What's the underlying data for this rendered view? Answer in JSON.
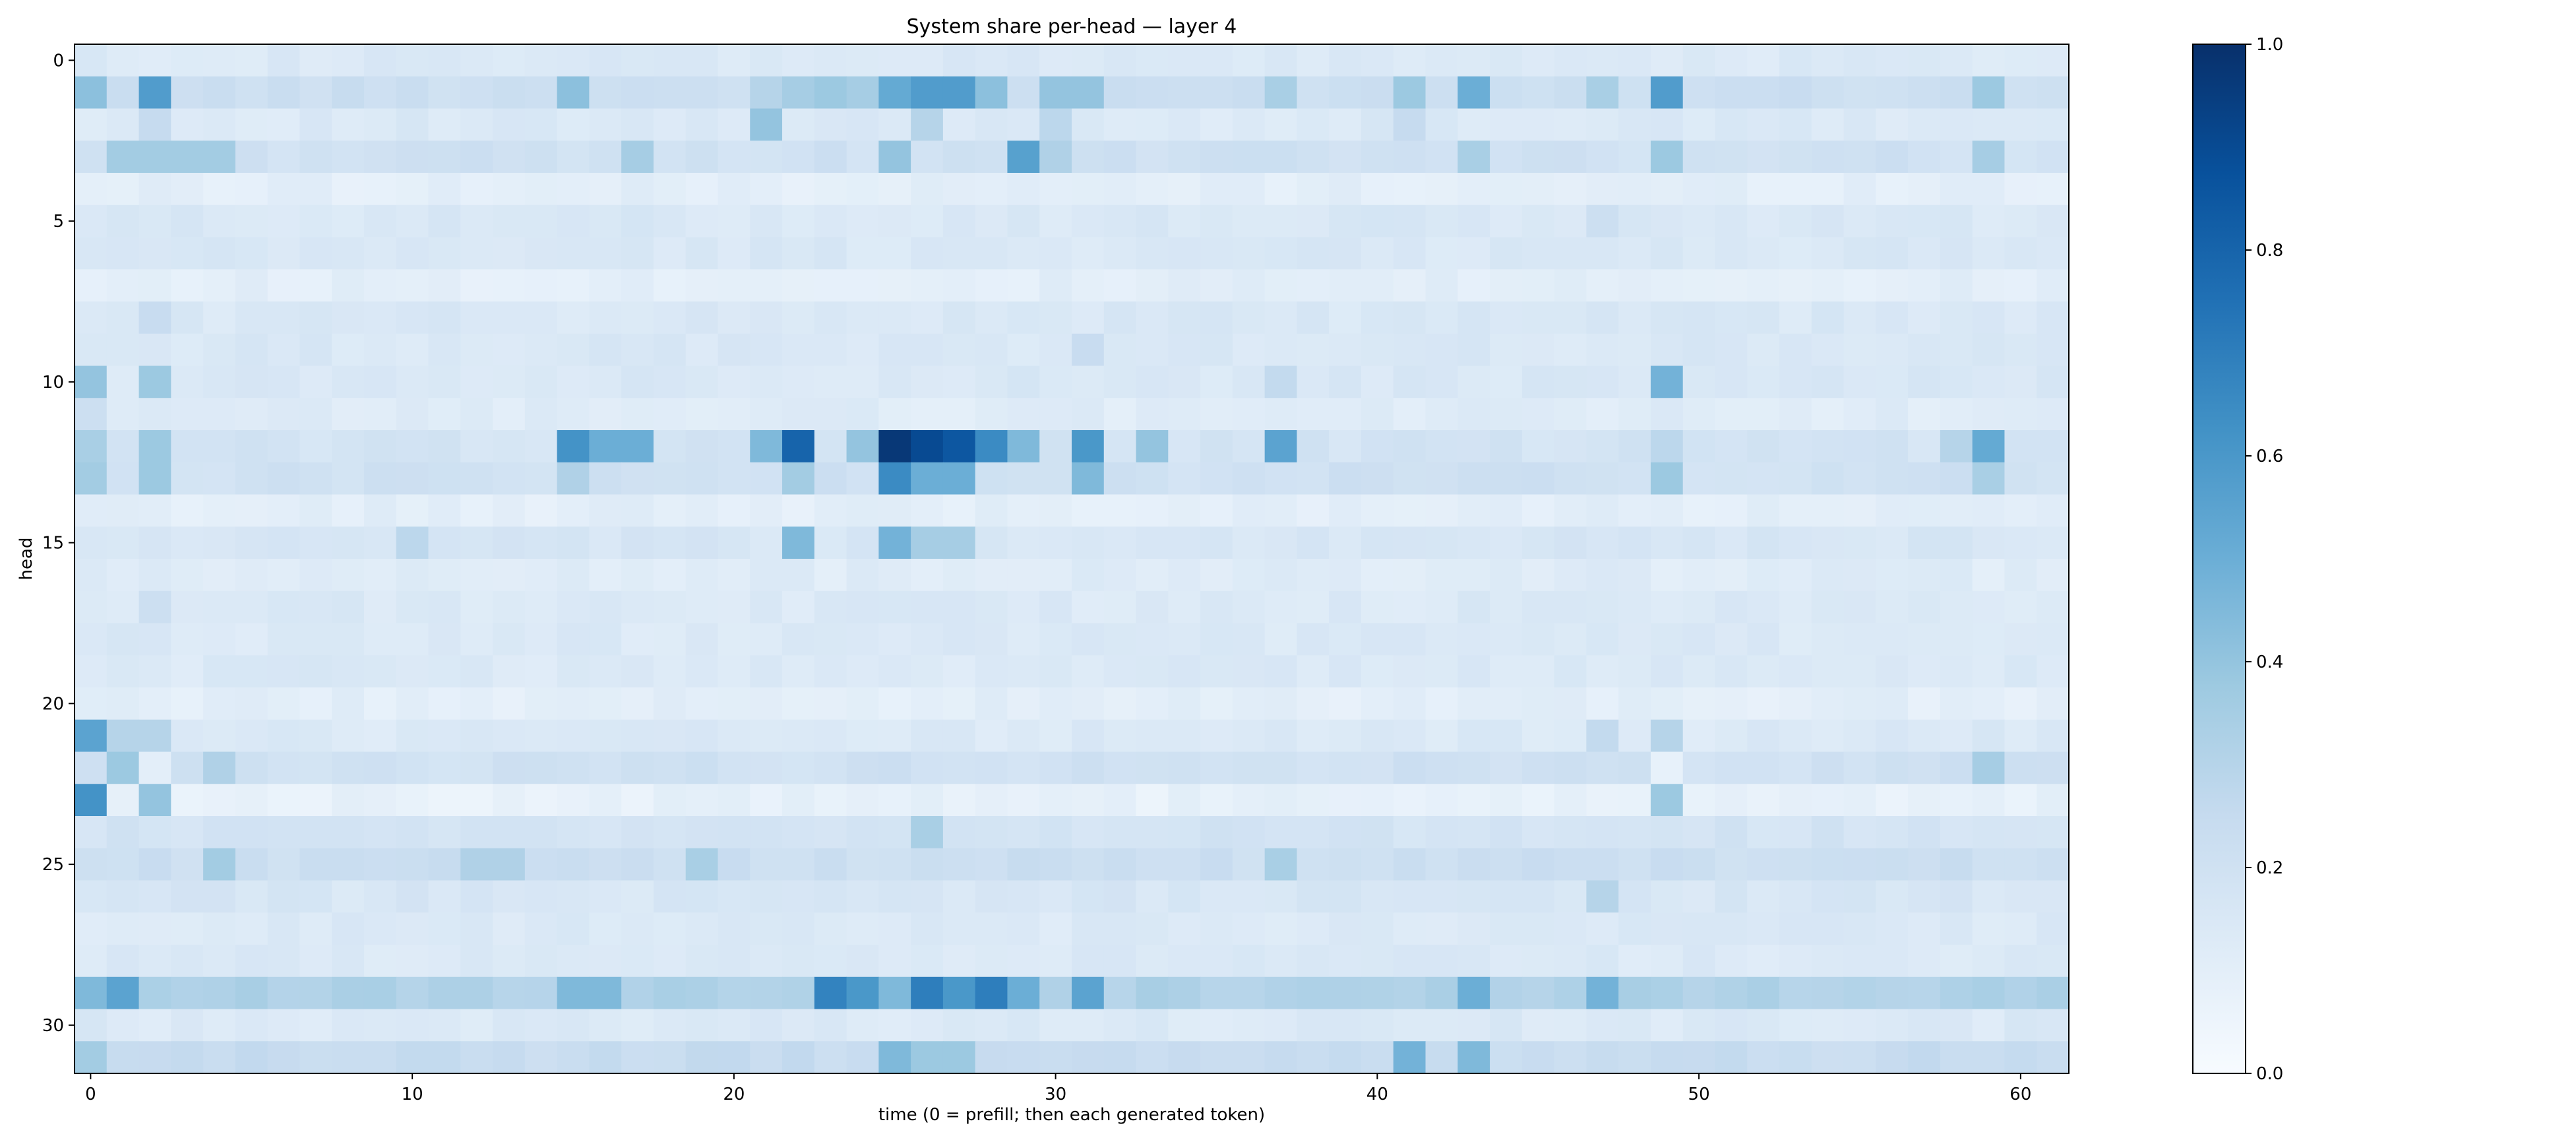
{
  "chart_data": {
    "type": "heatmap",
    "title": "System share per-head — layer 4",
    "xlabel": "time (0 = prefill; then each generated token)",
    "ylabel": "head",
    "x_ticks": [
      0,
      10,
      20,
      30,
      40,
      50,
      60
    ],
    "y_ticks": [
      0,
      5,
      10,
      15,
      20,
      25,
      30
    ],
    "n_time": 62,
    "n_heads": 32,
    "xlim": [
      -0.5,
      61.5
    ],
    "ylim": [
      31.5,
      -0.5
    ],
    "colormap": "Blues",
    "colorbar": {
      "min": 0.0,
      "max": 1.0,
      "ticks": [
        0.0,
        0.2,
        0.4,
        0.6,
        0.8,
        1.0
      ],
      "tick_labels": [
        "0.0",
        "0.2",
        "0.4",
        "0.6",
        "0.8",
        "1.0"
      ]
    },
    "grid": false,
    "legend": "none",
    "rows": [
      {
        "head": 0,
        "base": 0.14,
        "points": [
          [
            0,
            0.16
          ]
        ]
      },
      {
        "head": 1,
        "base": 0.22,
        "points": [
          [
            0,
            0.42
          ],
          [
            2,
            0.58
          ],
          [
            15,
            0.42
          ],
          [
            21,
            0.3
          ],
          [
            22,
            0.35
          ],
          [
            23,
            0.38
          ],
          [
            24,
            0.35
          ],
          [
            25,
            0.52
          ],
          [
            26,
            0.58
          ],
          [
            27,
            0.58
          ],
          [
            28,
            0.42
          ],
          [
            30,
            0.4
          ],
          [
            31,
            0.4
          ],
          [
            37,
            0.34
          ],
          [
            41,
            0.38
          ],
          [
            43,
            0.5
          ],
          [
            47,
            0.34
          ],
          [
            49,
            0.58
          ],
          [
            59,
            0.38
          ]
        ]
      },
      {
        "head": 2,
        "base": 0.14,
        "points": [
          [
            2,
            0.25
          ],
          [
            21,
            0.4
          ],
          [
            26,
            0.3
          ],
          [
            30,
            0.28
          ],
          [
            41,
            0.25
          ]
        ]
      },
      {
        "head": 3,
        "base": 0.2,
        "points": [
          [
            1,
            0.36
          ],
          [
            2,
            0.36
          ],
          [
            3,
            0.36
          ],
          [
            4,
            0.36
          ],
          [
            17,
            0.35
          ],
          [
            25,
            0.4
          ],
          [
            29,
            0.56
          ],
          [
            30,
            0.32
          ],
          [
            43,
            0.34
          ],
          [
            49,
            0.38
          ],
          [
            59,
            0.35
          ]
        ]
      },
      {
        "head": 4,
        "base": 0.1,
        "points": []
      },
      {
        "head": 5,
        "base": 0.15,
        "points": [
          [
            47,
            0.22
          ]
        ]
      },
      {
        "head": 6,
        "base": 0.15,
        "points": []
      },
      {
        "head": 7,
        "base": 0.1,
        "points": []
      },
      {
        "head": 8,
        "base": 0.15,
        "points": [
          [
            2,
            0.24
          ]
        ]
      },
      {
        "head": 9,
        "base": 0.15,
        "points": [
          [
            31,
            0.24
          ]
        ]
      },
      {
        "head": 10,
        "base": 0.15,
        "points": [
          [
            0,
            0.4
          ],
          [
            2,
            0.38
          ],
          [
            37,
            0.26
          ],
          [
            49,
            0.48
          ]
        ]
      },
      {
        "head": 11,
        "base": 0.12,
        "points": [
          [
            0,
            0.22
          ]
        ]
      },
      {
        "head": 12,
        "base": 0.18,
        "points": [
          [
            0,
            0.34
          ],
          [
            2,
            0.38
          ],
          [
            15,
            0.62
          ],
          [
            16,
            0.5
          ],
          [
            17,
            0.5
          ],
          [
            21,
            0.45
          ],
          [
            22,
            0.8
          ],
          [
            24,
            0.4
          ],
          [
            25,
            0.97
          ],
          [
            26,
            0.9
          ],
          [
            27,
            0.85
          ],
          [
            28,
            0.65
          ],
          [
            29,
            0.45
          ],
          [
            31,
            0.6
          ],
          [
            33,
            0.4
          ],
          [
            37,
            0.55
          ],
          [
            49,
            0.28
          ],
          [
            58,
            0.3
          ],
          [
            59,
            0.52
          ]
        ]
      },
      {
        "head": 13,
        "base": 0.2,
        "points": [
          [
            0,
            0.36
          ],
          [
            2,
            0.38
          ],
          [
            15,
            0.32
          ],
          [
            22,
            0.36
          ],
          [
            25,
            0.65
          ],
          [
            26,
            0.5
          ],
          [
            27,
            0.5
          ],
          [
            31,
            0.45
          ],
          [
            49,
            0.38
          ],
          [
            59,
            0.34
          ]
        ]
      },
      {
        "head": 14,
        "base": 0.1,
        "points": []
      },
      {
        "head": 15,
        "base": 0.16,
        "points": [
          [
            10,
            0.28
          ],
          [
            22,
            0.45
          ],
          [
            25,
            0.48
          ],
          [
            26,
            0.35
          ],
          [
            27,
            0.35
          ]
        ]
      },
      {
        "head": 16,
        "base": 0.12,
        "points": []
      },
      {
        "head": 17,
        "base": 0.14,
        "points": [
          [
            2,
            0.22
          ]
        ]
      },
      {
        "head": 18,
        "base": 0.14,
        "points": []
      },
      {
        "head": 19,
        "base": 0.14,
        "points": []
      },
      {
        "head": 20,
        "base": 0.1,
        "points": []
      },
      {
        "head": 21,
        "base": 0.14,
        "points": [
          [
            0,
            0.55
          ],
          [
            1,
            0.3
          ],
          [
            2,
            0.3
          ],
          [
            47,
            0.26
          ],
          [
            49,
            0.3
          ]
        ]
      },
      {
        "head": 22,
        "base": 0.2,
        "points": [
          [
            1,
            0.38
          ],
          [
            2,
            0.1
          ],
          [
            4,
            0.32
          ],
          [
            49,
            0.08
          ],
          [
            59,
            0.35
          ]
        ]
      },
      {
        "head": 23,
        "base": 0.08,
        "points": [
          [
            0,
            0.62
          ],
          [
            2,
            0.4
          ],
          [
            49,
            0.38
          ]
        ]
      },
      {
        "head": 24,
        "base": 0.18,
        "points": [
          [
            26,
            0.34
          ]
        ]
      },
      {
        "head": 25,
        "base": 0.22,
        "points": [
          [
            4,
            0.36
          ],
          [
            12,
            0.32
          ],
          [
            13,
            0.32
          ],
          [
            19,
            0.34
          ],
          [
            37,
            0.34
          ]
        ]
      },
      {
        "head": 26,
        "base": 0.16,
        "points": [
          [
            47,
            0.3
          ]
        ]
      },
      {
        "head": 27,
        "base": 0.14,
        "points": []
      },
      {
        "head": 28,
        "base": 0.14,
        "points": []
      },
      {
        "head": 29,
        "base": 0.32,
        "points": [
          [
            0,
            0.45
          ],
          [
            1,
            0.55
          ],
          [
            15,
            0.45
          ],
          [
            16,
            0.45
          ],
          [
            23,
            0.68
          ],
          [
            24,
            0.6
          ],
          [
            25,
            0.45
          ],
          [
            26,
            0.7
          ],
          [
            27,
            0.6
          ],
          [
            28,
            0.7
          ],
          [
            29,
            0.5
          ],
          [
            31,
            0.55
          ],
          [
            43,
            0.5
          ],
          [
            47,
            0.48
          ]
        ]
      },
      {
        "head": 30,
        "base": 0.14,
        "points": []
      },
      {
        "head": 31,
        "base": 0.24,
        "points": [
          [
            0,
            0.36
          ],
          [
            25,
            0.45
          ],
          [
            26,
            0.38
          ],
          [
            27,
            0.38
          ],
          [
            41,
            0.48
          ],
          [
            43,
            0.45
          ]
        ]
      }
    ]
  }
}
